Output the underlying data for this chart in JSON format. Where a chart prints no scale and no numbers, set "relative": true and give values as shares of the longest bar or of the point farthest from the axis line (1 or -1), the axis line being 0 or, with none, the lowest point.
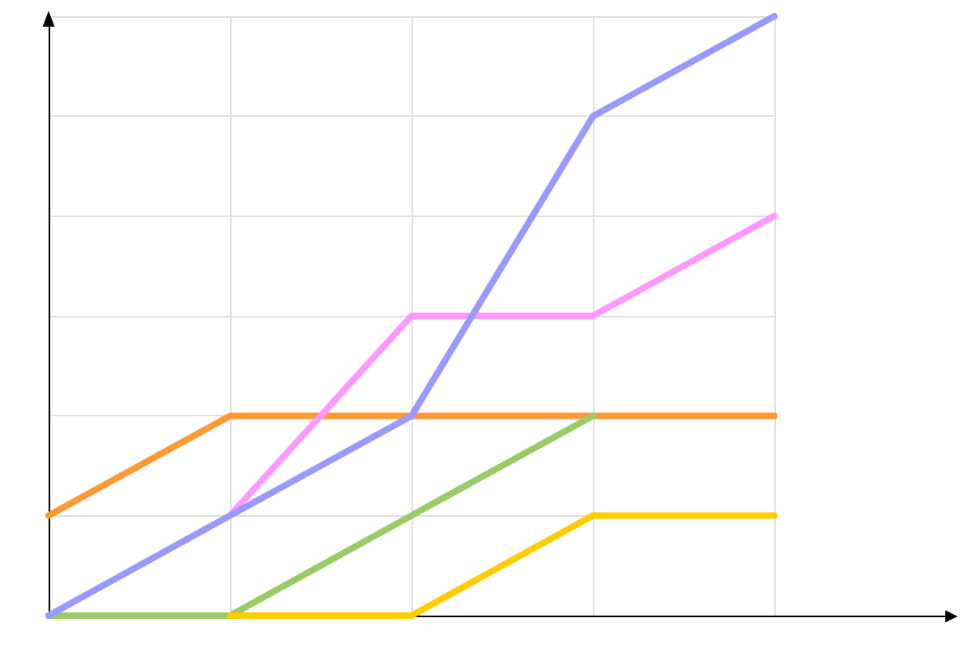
{
  "chart_data": {
    "type": "line",
    "relative": true,
    "grid": true,
    "marker": "none",
    "line_style": "solid",
    "categories": [
      null,
      null,
      null,
      null,
      null
    ],
    "series": [
      {
        "color": "#ff9933",
        "values": [
          0.167,
          0.333,
          0.333,
          0.333,
          0.333
        ]
      },
      {
        "color": "#99cc66",
        "values": [
          0,
          0,
          0.167,
          0.333,
          null
        ]
      },
      {
        "color": "#ffcc00",
        "values": [
          null,
          0,
          0,
          0.167,
          0.167
        ]
      },
      {
        "color": "#ff99ff",
        "values": [
          null,
          0.167,
          0.5,
          0.5,
          0.667
        ]
      },
      {
        "color": "#9999ff",
        "values": [
          0,
          0.167,
          0.333,
          0.833,
          1
        ]
      }
    ]
  }
}
